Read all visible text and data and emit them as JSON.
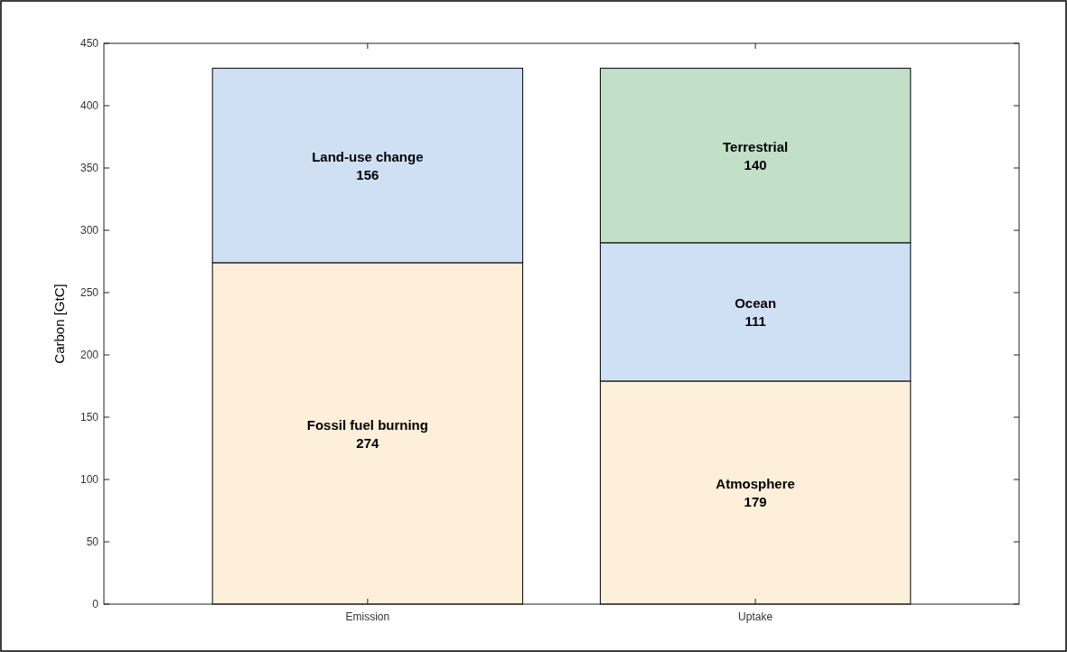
{
  "chart_data": {
    "type": "bar",
    "stacked": true,
    "ylabel": "Carbon [GtC]",
    "categories": [
      "Emission",
      "Uptake"
    ],
    "ylim": [
      0,
      450
    ],
    "yticks": [
      0,
      50,
      100,
      150,
      200,
      250,
      300,
      350,
      400,
      450
    ],
    "data_labels": true,
    "series": [
      {
        "name": "Fossil fuel burning",
        "color": "#fdefd9",
        "values": [
          274,
          null
        ]
      },
      {
        "name": "Land-use change",
        "color": "#cfe0f5",
        "values": [
          156,
          null
        ]
      },
      {
        "name": "Atmosphere",
        "color": "#fdefd9",
        "values": [
          null,
          179
        ]
      },
      {
        "name": "Ocean",
        "color": "#cfe0f5",
        "values": [
          null,
          111
        ]
      },
      {
        "name": "Terrestrial",
        "color": "#c2dfc7",
        "values": [
          null,
          140
        ]
      }
    ]
  }
}
